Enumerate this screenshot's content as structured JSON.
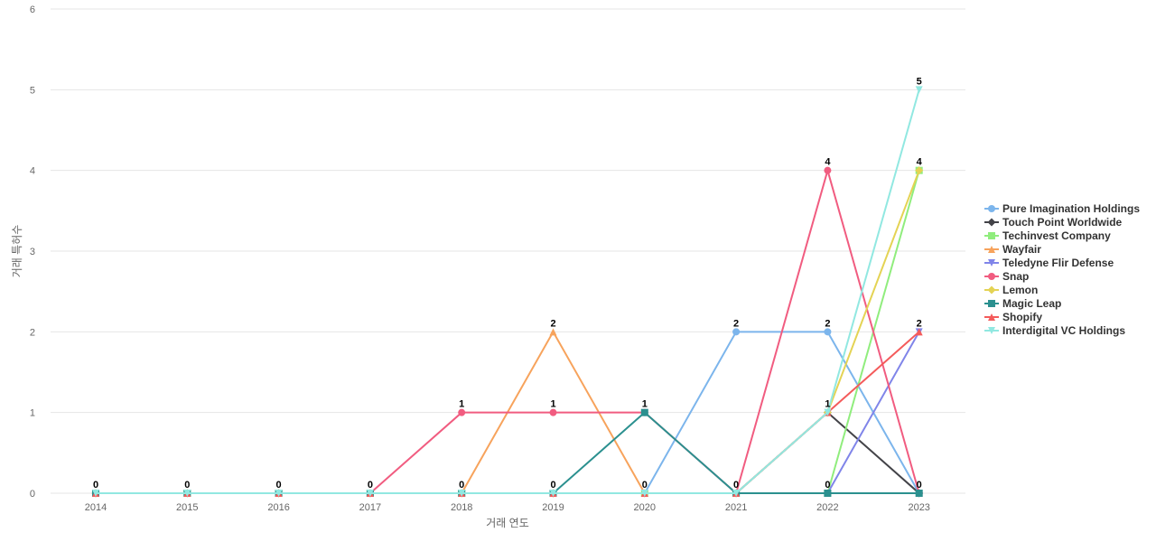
{
  "chart_data": {
    "type": "line",
    "title": "",
    "xlabel": "거래 연도",
    "ylabel": "거래 특허수",
    "categories": [
      "2014",
      "2015",
      "2016",
      "2017",
      "2018",
      "2019",
      "2020",
      "2021",
      "2022",
      "2023"
    ],
    "ylim": [
      0,
      6
    ],
    "yticks": [
      "0",
      "1",
      "2",
      "3",
      "4",
      "5",
      "6"
    ],
    "grid": true,
    "legend_position": "right",
    "series": [
      {
        "name": "Pure Imagination Holdings",
        "color": "#7cb5ec",
        "marker": "circle",
        "values": [
          0,
          0,
          0,
          0,
          0,
          0,
          0,
          2,
          2,
          0
        ]
      },
      {
        "name": "Touch Point Worldwide",
        "color": "#434348",
        "marker": "diamond",
        "values": [
          0,
          0,
          0,
          0,
          0,
          0,
          0,
          0,
          1,
          0
        ]
      },
      {
        "name": "Techinvest Company",
        "color": "#90ed7d",
        "marker": "square",
        "values": [
          0,
          0,
          0,
          0,
          0,
          0,
          0,
          0,
          0,
          4
        ]
      },
      {
        "name": "Wayfair",
        "color": "#f7a35c",
        "marker": "triangle",
        "values": [
          0,
          0,
          0,
          0,
          0,
          2,
          0,
          0,
          0,
          0
        ]
      },
      {
        "name": "Teledyne Flir Defense",
        "color": "#8085e9",
        "marker": "triangle-down",
        "values": [
          0,
          0,
          0,
          0,
          0,
          0,
          0,
          0,
          0,
          2
        ]
      },
      {
        "name": "Snap",
        "color": "#f15c80",
        "marker": "circle",
        "values": [
          0,
          0,
          0,
          0,
          1,
          1,
          1,
          0,
          4,
          0
        ]
      },
      {
        "name": "Lemon",
        "color": "#e4d354",
        "marker": "diamond",
        "values": [
          0,
          0,
          0,
          0,
          0,
          0,
          0,
          0,
          1,
          4
        ]
      },
      {
        "name": "Magic Leap",
        "color": "#2b908f",
        "marker": "square",
        "values": [
          0,
          0,
          0,
          0,
          0,
          0,
          1,
          0,
          0,
          0
        ]
      },
      {
        "name": "Shopify",
        "color": "#f45b5b",
        "marker": "triangle",
        "values": [
          0,
          0,
          0,
          0,
          0,
          0,
          0,
          0,
          1,
          2
        ]
      },
      {
        "name": "Interdigital VC Holdings",
        "color": "#91e8e1",
        "marker": "triangle-down",
        "values": [
          0,
          0,
          0,
          0,
          0,
          0,
          0,
          0,
          1,
          5
        ]
      }
    ],
    "data_labels": [
      {
        "x": "2014",
        "label": "0",
        "y": 0
      },
      {
        "x": "2015",
        "label": "0",
        "y": 0
      },
      {
        "x": "2016",
        "label": "0",
        "y": 0
      },
      {
        "x": "2017",
        "label": "0",
        "y": 0
      },
      {
        "x": "2018",
        "label": "1",
        "y": 1
      },
      {
        "x": "2018",
        "label": "0",
        "y": 0
      },
      {
        "x": "2019",
        "label": "2",
        "y": 2
      },
      {
        "x": "2019",
        "label": "1",
        "y": 1
      },
      {
        "x": "2019",
        "label": "0",
        "y": 0
      },
      {
        "x": "2020",
        "label": "1",
        "y": 1
      },
      {
        "x": "2020",
        "label": "0",
        "y": 0
      },
      {
        "x": "2021",
        "label": "2",
        "y": 2
      },
      {
        "x": "2021",
        "label": "0",
        "y": 0
      },
      {
        "x": "2022",
        "label": "4",
        "y": 4
      },
      {
        "x": "2022",
        "label": "2",
        "y": 2
      },
      {
        "x": "2022",
        "label": "1",
        "y": 1
      },
      {
        "x": "2022",
        "label": "0",
        "y": 0
      },
      {
        "x": "2023",
        "label": "5",
        "y": 5
      },
      {
        "x": "2023",
        "label": "4",
        "y": 4
      },
      {
        "x": "2023",
        "label": "2",
        "y": 2
      },
      {
        "x": "2023",
        "label": "0",
        "y": 0
      }
    ]
  }
}
